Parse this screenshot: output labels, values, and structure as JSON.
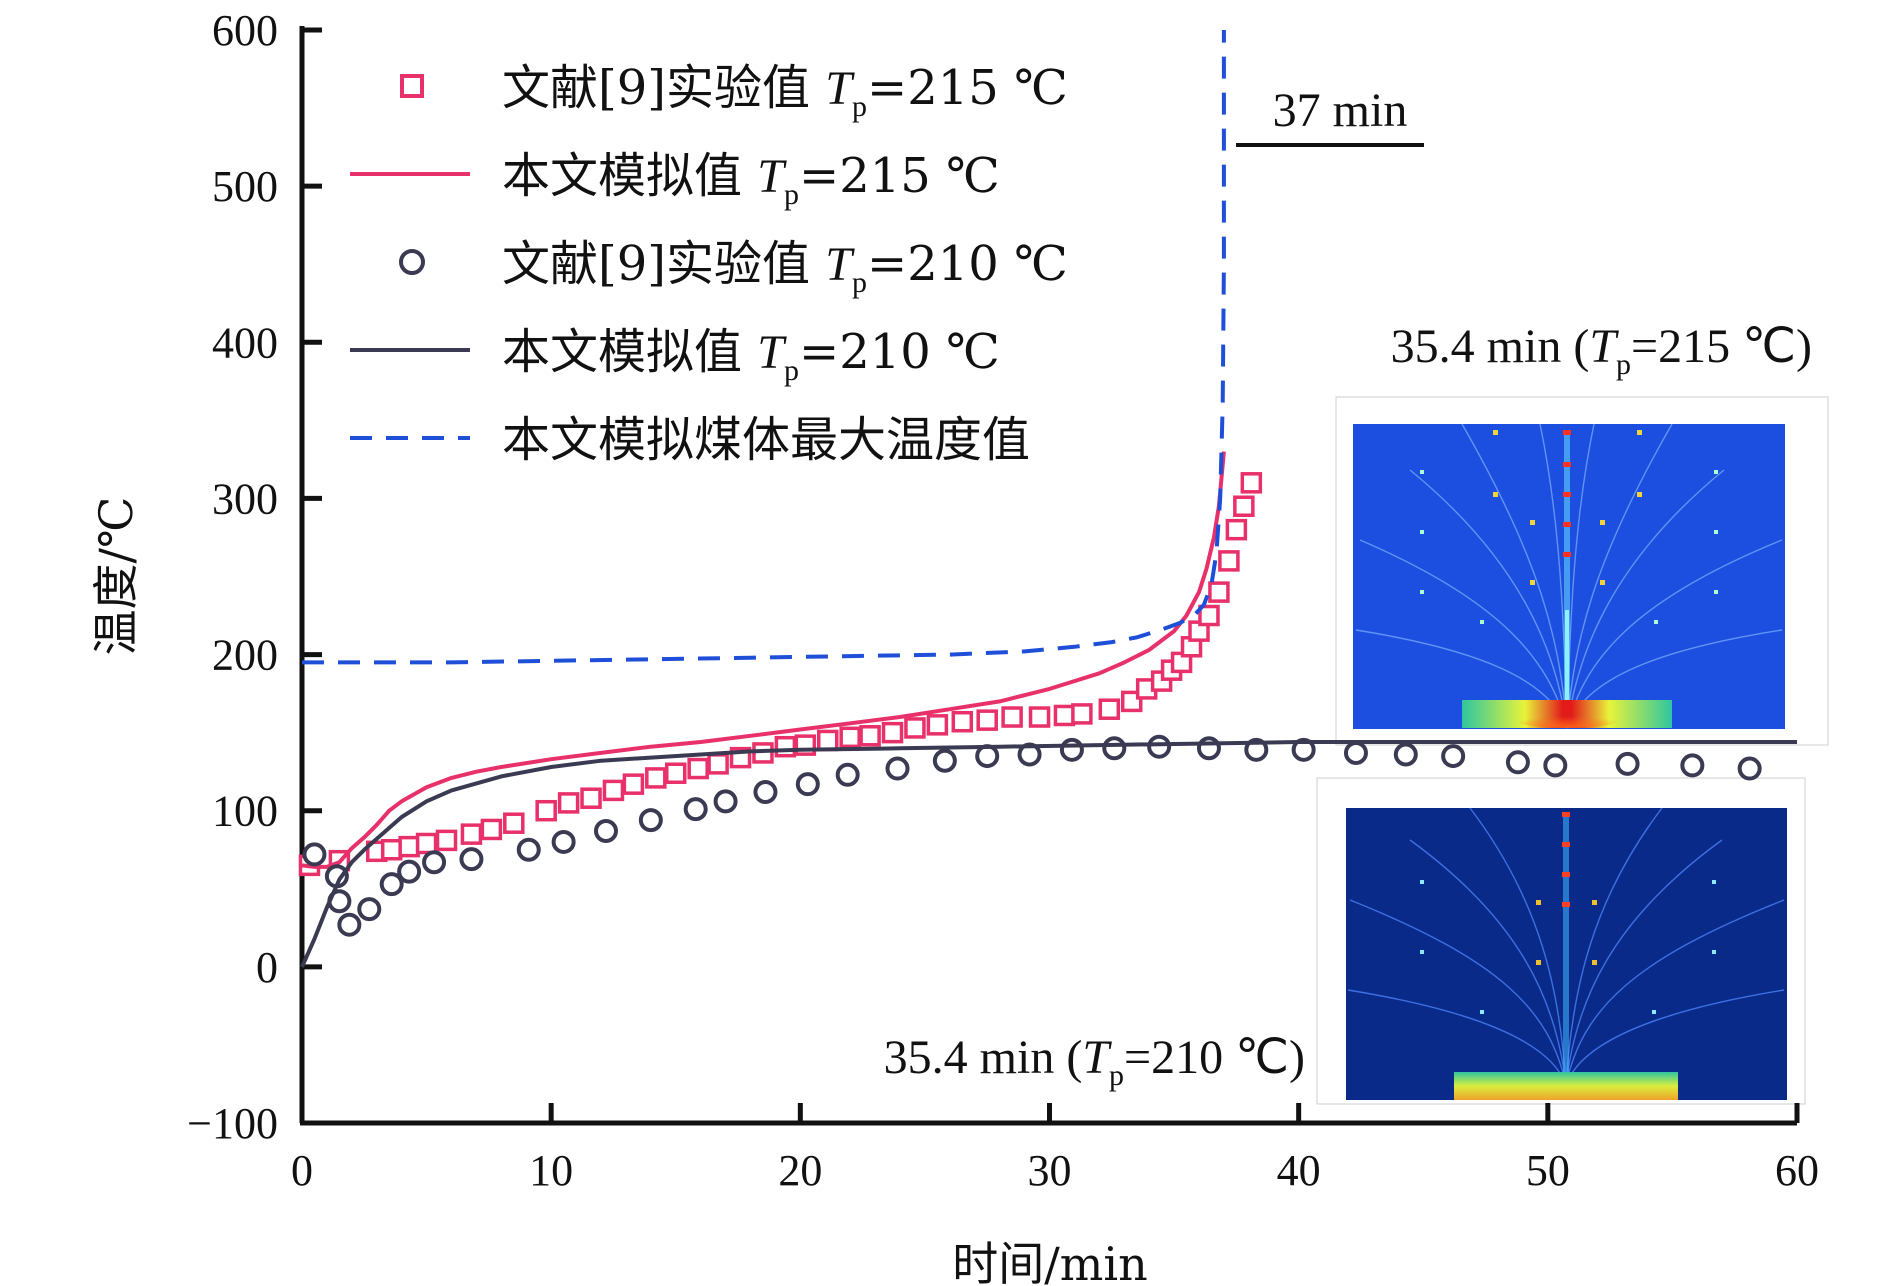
{
  "chart_data": {
    "type": "line",
    "xlabel": "时间/min",
    "ylabel": "温度/℃",
    "xlim": [
      0,
      60
    ],
    "ylim": [
      -100,
      600
    ],
    "xticks": [
      0,
      10,
      20,
      30,
      40,
      50,
      60
    ],
    "yticks": [
      -100,
      0,
      100,
      200,
      300,
      400,
      500,
      600
    ],
    "grid": false,
    "legend_position": "top-left",
    "series": [
      {
        "name": "文献[9]实验值 Tp=215 ℃",
        "legend": {
          "pre": "文献[9]实验值 ",
          "var": "T",
          "sub": "p",
          "post": "=215 ℃"
        },
        "kind": "markers",
        "marker": "square",
        "color": "#e8306a",
        "x": [
          0.3,
          1.5,
          3.0,
          3.6,
          4.3,
          5.0,
          5.8,
          6.8,
          7.6,
          8.5,
          9.8,
          10.7,
          11.6,
          12.5,
          13.3,
          14.2,
          15.0,
          15.9,
          16.7,
          17.6,
          18.5,
          19.4,
          20.2,
          21.1,
          22.0,
          22.8,
          23.7,
          24.6,
          25.5,
          26.5,
          27.5,
          28.5,
          29.6,
          30.6,
          31.3,
          32.4,
          33.3,
          33.9,
          34.5,
          34.9,
          35.3,
          35.7,
          36.0,
          36.4,
          36.8,
          37.2,
          37.5,
          37.8,
          38.1
        ],
        "y": [
          65,
          68,
          74,
          75,
          77,
          79,
          81,
          85,
          88,
          92,
          100,
          105,
          108,
          113,
          117,
          121,
          124,
          127,
          130,
          134,
          137,
          141,
          142,
          145,
          147,
          148,
          150,
          153,
          155,
          157,
          158,
          160,
          160,
          161,
          162,
          165,
          170,
          178,
          183,
          190,
          195,
          205,
          215,
          225,
          240,
          260,
          280,
          295,
          310
        ]
      },
      {
        "name": "本文模拟值 Tp=215 ℃",
        "legend": {
          "pre": "本文模拟值 ",
          "var": "T",
          "sub": "p",
          "post": "=215 ℃"
        },
        "kind": "line",
        "color": "#e8306a",
        "x": [
          0,
          0.5,
          1,
          1.5,
          2,
          2.5,
          3,
          3.5,
          4,
          5,
          6,
          7,
          8,
          10,
          12,
          14,
          16,
          18,
          20,
          22,
          24,
          26,
          28,
          30,
          31,
          32,
          33,
          34,
          35,
          35.5,
          36,
          36.3,
          36.6,
          36.8,
          37.0
        ],
        "y": [
          65,
          64,
          64,
          67,
          76,
          83,
          91,
          100,
          106,
          115,
          121,
          125,
          128,
          133,
          137,
          141,
          144,
          148,
          152,
          156,
          160,
          165,
          170,
          178,
          183,
          188,
          195,
          203,
          215,
          225,
          240,
          255,
          275,
          295,
          330
        ]
      },
      {
        "name": "文献[9]实验值 Tp=210 ℃",
        "legend": {
          "pre": "文献[9]实验值 ",
          "var": "T",
          "sub": "p",
          "post": "=210 ℃"
        },
        "kind": "markers",
        "marker": "circle",
        "color": "#3a3a52",
        "x": [
          0.5,
          1.4,
          1.5,
          1.9,
          2.7,
          3.6,
          4.3,
          5.3,
          6.8,
          9.1,
          10.5,
          12.2,
          14.0,
          15.8,
          17.0,
          18.6,
          20.3,
          21.9,
          23.9,
          25.8,
          27.5,
          29.2,
          30.9,
          32.6,
          34.4,
          36.4,
          38.3,
          40.2,
          42.3,
          44.3,
          46.2,
          48.8,
          50.3,
          53.2,
          55.8,
          58.1
        ],
        "y": [
          72,
          58,
          42,
          27,
          37,
          53,
          61,
          67,
          69,
          75,
          80,
          87,
          94,
          101,
          106,
          112,
          117,
          123,
          127,
          132,
          135,
          136,
          139,
          140,
          141,
          140,
          139,
          139,
          137,
          136,
          135,
          131,
          129,
          130,
          129,
          127
        ]
      },
      {
        "name": "本文模拟值 Tp=210 ℃",
        "legend": {
          "pre": "本文模拟值 ",
          "var": "T",
          "sub": "p",
          "post": "=210 ℃"
        },
        "kind": "line",
        "color": "#3a3a52",
        "x": [
          0,
          0.5,
          1,
          1.5,
          2,
          2.5,
          3,
          3.5,
          4,
          5,
          6,
          8,
          10,
          12,
          14,
          16,
          18,
          20,
          24,
          28,
          32,
          36,
          40,
          44,
          48,
          52,
          56,
          60
        ],
        "y": [
          0,
          18,
          38,
          56,
          67,
          75,
          82,
          89,
          96,
          106,
          113,
          122,
          128,
          132,
          134,
          136,
          138,
          139,
          140,
          141,
          142,
          143,
          144,
          144,
          144,
          144,
          144,
          144
        ]
      },
      {
        "name": "本文模拟煤体最大温度值",
        "legend": {
          "pre": "本文模拟煤体最大温度值"
        },
        "kind": "line",
        "dash": true,
        "color": "#1f4fd8",
        "x": [
          0,
          3,
          6,
          10,
          14,
          18,
          22,
          26,
          29,
          31,
          32.5,
          33.5,
          34.5,
          35.2,
          35.8,
          36.2,
          36.5,
          36.7,
          36.85,
          36.95,
          37.0,
          37.0
        ],
        "y": [
          195,
          195,
          195,
          196,
          197,
          198,
          199,
          200,
          202,
          205,
          208,
          211,
          216,
          220,
          225,
          232,
          245,
          265,
          300,
          360,
          450,
          600
        ]
      }
    ],
    "annotations": [
      {
        "text": "37 min"
      },
      {
        "pre": "35.4 min (",
        "var": "T",
        "sub": "p",
        "post": "=215 ℃)"
      },
      {
        "pre": "35.4 min (",
        "var": "T",
        "sub": "p",
        "post": "=210 ℃)"
      }
    ]
  }
}
